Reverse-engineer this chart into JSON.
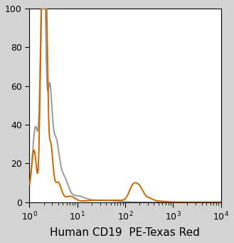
{
  "title": "",
  "xlabel": "Human CD19  PE-Texas Red",
  "ylabel": "",
  "background_color": "#d4d4d4",
  "plot_bg_color": "#ffffff",
  "orange_color": "#cc6600",
  "gray_color": "#999999",
  "line_width": 1.4,
  "xlabel_fontsize": 11,
  "ytick_fontsize": 9,
  "xtick_fontsize": 9,
  "yticks": [
    0,
    20,
    40,
    60,
    80,
    100
  ],
  "ylim": [
    0,
    100
  ]
}
